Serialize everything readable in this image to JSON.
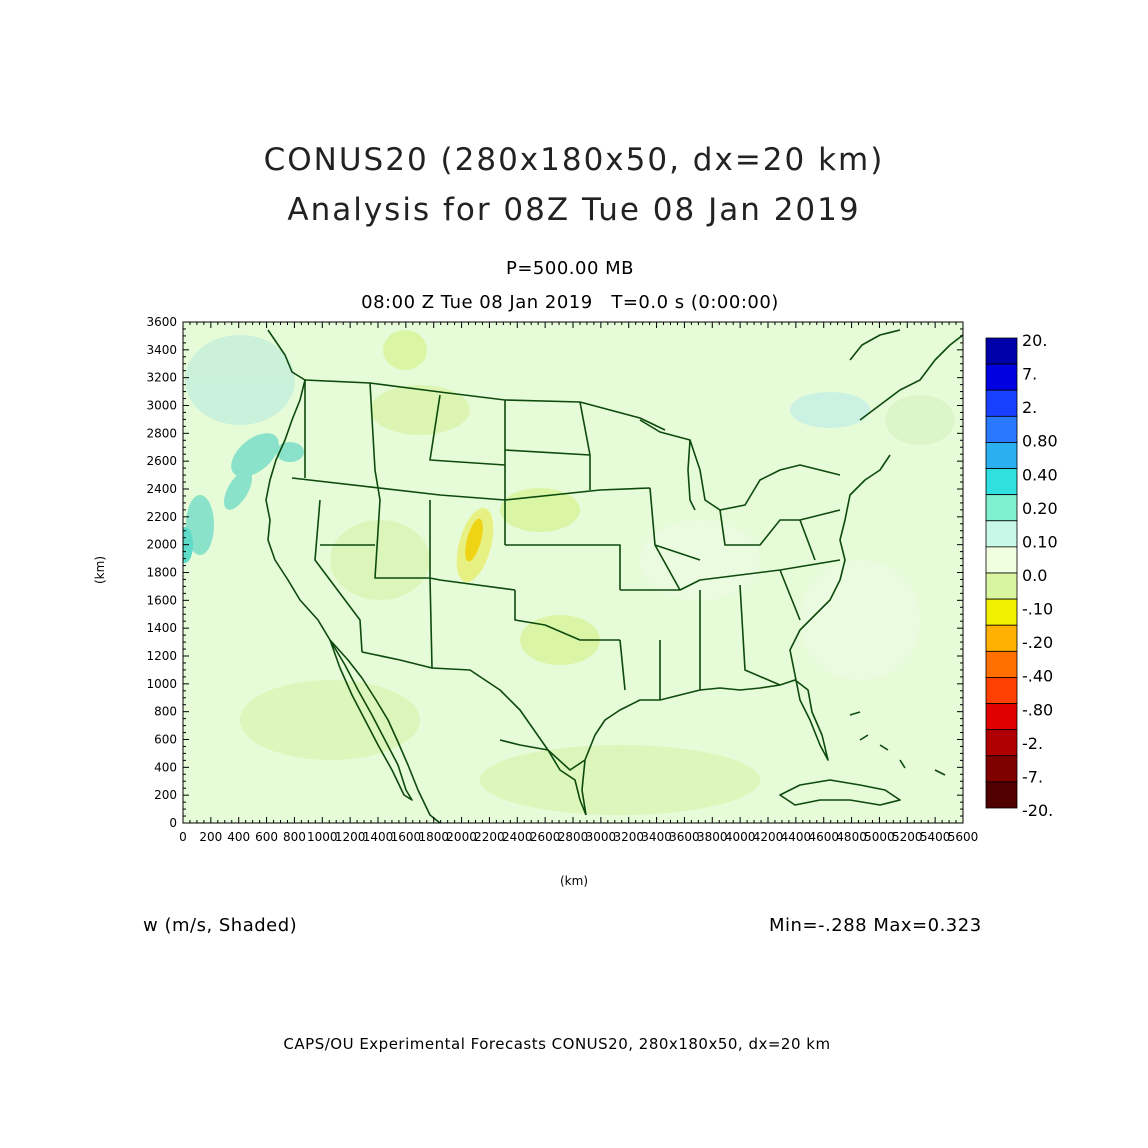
{
  "titles": {
    "line1": "CONUS20 (280x180x50, dx=20 km)",
    "line2": "Analysis for 08Z Tue 08 Jan 2019",
    "level": "P=500.00 MB",
    "valid_time": "08:00 Z Tue 08 Jan 2019",
    "integration_time": "T=0.0 s (0:00:00)"
  },
  "axes": {
    "x_unit": "(km)",
    "y_unit": "(km)",
    "x_ticks": [
      "0",
      "200",
      "400",
      "600",
      "800",
      "1000",
      "1200",
      "1400",
      "1600",
      "1800",
      "2000",
      "2200",
      "2400",
      "2600",
      "2800",
      "3000",
      "3200",
      "3400",
      "3600",
      "3800",
      "4000",
      "4200",
      "4400",
      "4600",
      "4800",
      "5000",
      "5200",
      "5400",
      "5600"
    ],
    "y_ticks": [
      "0",
      "200",
      "400",
      "600",
      "800",
      "1000",
      "1200",
      "1400",
      "1600",
      "1800",
      "2000",
      "2200",
      "2400",
      "2600",
      "2800",
      "3000",
      "3200",
      "3400",
      "3600"
    ],
    "x_range_km": [
      0,
      5600
    ],
    "y_range_km": [
      0,
      3600
    ]
  },
  "colorbar": {
    "labels": [
      "20.",
      "7.",
      "2.",
      "0.80",
      "0.40",
      "0.20",
      "0.10",
      "0.0",
      "-.10",
      "-.20",
      "-.40",
      "-.80",
      "-2.",
      "-7.",
      "-20."
    ],
    "colors": [
      "#0000a8",
      "#0000e0",
      "#1a40ff",
      "#2a78ff",
      "#2ab0f0",
      "#30e0e0",
      "#80f0d0",
      "#c8f8e8",
      "#f0ffe0",
      "#d8f5a0",
      "#f0f000",
      "#ffb000",
      "#ff7000",
      "#ff4000",
      "#e00000",
      "#b00000",
      "#800000",
      "#500000"
    ]
  },
  "field": {
    "label": "w (m/s, Shaded)",
    "min_max": "Min=-.288  Max=0.323"
  },
  "map": {
    "background_color": "#e6fbd8",
    "line_color": "#0d4a0d"
  },
  "footer": "CAPS/OU Experimental Forecasts  CONUS20, 280x180x50, dx=20 km"
}
